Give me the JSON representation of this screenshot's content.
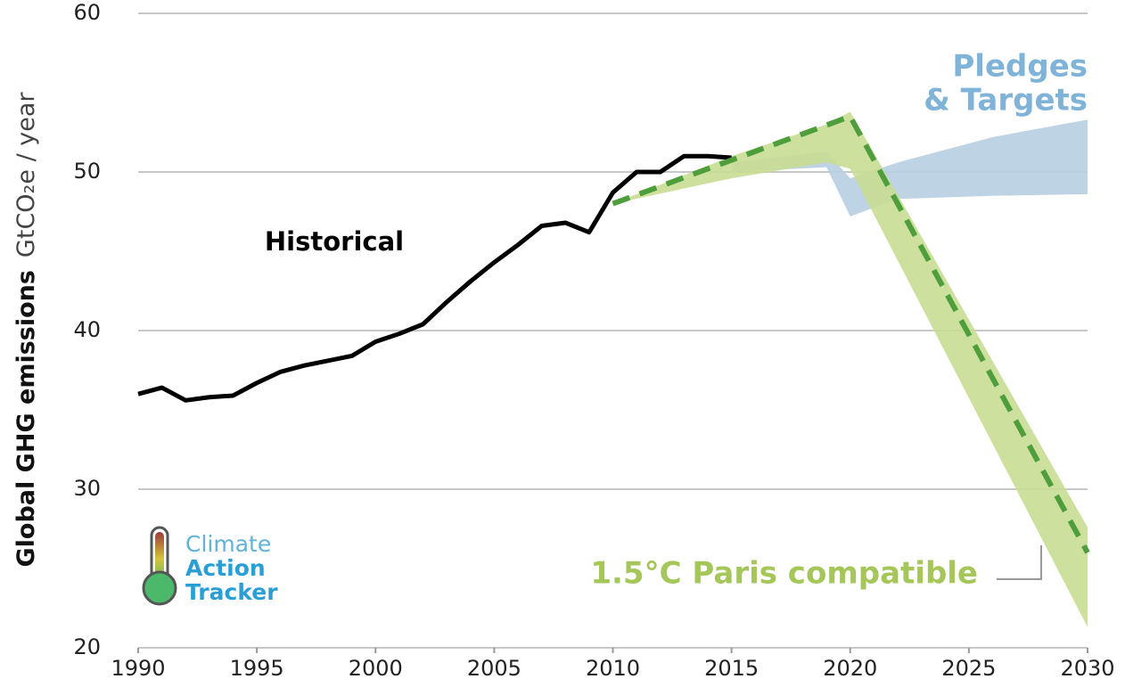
{
  "chart_data": {
    "type": "line",
    "ylabel": [
      "Global GHG  emissions",
      "GtCO₂e / year"
    ],
    "xlim": [
      1990,
      2030
    ],
    "xticks": [
      1990,
      1995,
      2000,
      2005,
      2010,
      2015,
      2020,
      2025,
      2030
    ],
    "ylim": [
      20,
      60
    ],
    "yticks": [
      20,
      30,
      40,
      50,
      60
    ],
    "grid": true,
    "series": [
      {
        "name": "Historical",
        "kind": "line",
        "color": "#000000",
        "x": [
          1990,
          1991,
          1992,
          1993,
          1994,
          1995,
          1996,
          1997,
          1998,
          1999,
          2000,
          2001,
          2002,
          2003,
          2004,
          2005,
          2006,
          2007,
          2008,
          2009,
          2010,
          2011,
          2012,
          2013,
          2014,
          2015
        ],
        "values": [
          36.0,
          36.4,
          35.6,
          35.8,
          35.9,
          36.7,
          37.4,
          37.8,
          38.1,
          38.4,
          39.3,
          39.8,
          40.4,
          41.8,
          43.1,
          44.3,
          45.4,
          46.6,
          46.8,
          46.2,
          48.7,
          50.0,
          50.0,
          51.0,
          51.0,
          50.9
        ]
      },
      {
        "name": [
          "Pledges",
          "& Targets"
        ],
        "kind": "band",
        "color": "#b7cfe2",
        "label_color": "#7fb3d8",
        "x": [
          2015,
          2019,
          2020,
          2022,
          2026,
          2030
        ],
        "upper": [
          50.6,
          51.3,
          49.6,
          50.6,
          52.2,
          53.3
        ],
        "lower": [
          50.0,
          50.3,
          47.2,
          48.3,
          48.5,
          48.6
        ]
      },
      {
        "name": "1.5°C Paris compatible",
        "kind": "band",
        "color": "#c8dd92",
        "label_color": "#a5c659",
        "x": [
          2010,
          2015,
          2019,
          2020,
          2030
        ],
        "upper": [
          48.0,
          51.0,
          53.0,
          53.8,
          27.6
        ],
        "lower": [
          48.0,
          49.6,
          50.6,
          50.2,
          21.3
        ]
      },
      {
        "kind": "dashed",
        "color": "#4e9e3c",
        "x": [
          2010,
          2020,
          2030
        ],
        "values": [
          48.0,
          53.5,
          26.0
        ]
      }
    ],
    "logo": [
      "Climate",
      "Action",
      "Tracker"
    ]
  }
}
